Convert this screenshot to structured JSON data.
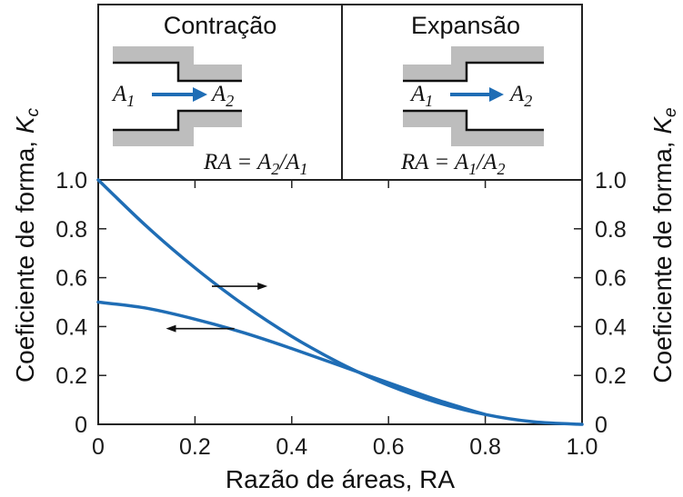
{
  "chart_data": {
    "type": "line",
    "xlabel": "Razão de áreas, RA",
    "ylabel_left": {
      "text": "Coeficiente de forma, ",
      "symbol": "K",
      "sub": "c"
    },
    "ylabel_right": {
      "text": "Coeficiente de forma, ",
      "symbol": "K",
      "sub": "e"
    },
    "xlim": [
      0,
      1
    ],
    "ylim": [
      0,
      1
    ],
    "xticks": [
      "0",
      "0.2",
      "0.4",
      "0.6",
      "0.8",
      "1.0"
    ],
    "yticks_left": [
      "0",
      "0.2",
      "0.4",
      "0.6",
      "0.8",
      "1.0"
    ],
    "yticks_right": [
      "0",
      "0.2",
      "0.4",
      "0.6",
      "0.8",
      "1.0"
    ],
    "grid": false,
    "line_color": "#1f6db5",
    "series": [
      {
        "axis": "right",
        "x": [
          0,
          0.1,
          0.2,
          0.3,
          0.4,
          0.5,
          0.6,
          0.7,
          0.8,
          0.9,
          1.0
        ],
        "y": [
          1.0,
          0.81,
          0.64,
          0.49,
          0.36,
          0.25,
          0.16,
          0.09,
          0.04,
          0.01,
          0.0
        ]
      },
      {
        "axis": "left",
        "x": [
          0,
          0.1,
          0.2,
          0.3,
          0.4,
          0.5,
          0.6,
          0.7,
          0.8
        ],
        "y": [
          0.5,
          0.475,
          0.43,
          0.375,
          0.31,
          0.24,
          0.17,
          0.1,
          0.04
        ]
      }
    ],
    "annotations": [
      {
        "kind": "arrow",
        "direction": "right",
        "series_index": 0
      },
      {
        "kind": "arrow",
        "direction": "left",
        "series_index": 1
      }
    ]
  },
  "panels": {
    "contraction": {
      "title": "Contração",
      "a_in": {
        "letter": "A",
        "sub": "1"
      },
      "a_out": {
        "letter": "A",
        "sub": "2"
      },
      "ratio": {
        "lhs": "RA = ",
        "num": "A",
        "num_sub": "2",
        "slash": "/",
        "den": "A",
        "den_sub": "1"
      }
    },
    "expansion": {
      "title": "Expansão",
      "a_in": {
        "letter": "A",
        "sub": "1"
      },
      "a_out": {
        "letter": "A",
        "sub": "2"
      },
      "ratio": {
        "lhs": "RA = ",
        "num": "A",
        "num_sub": "1",
        "slash": "/",
        "den": "A",
        "den_sub": "2"
      }
    }
  },
  "colors": {
    "pipe_wall": "#bdbdbd",
    "flow_arrow": "#1f6db5",
    "frame": "#222222"
  }
}
